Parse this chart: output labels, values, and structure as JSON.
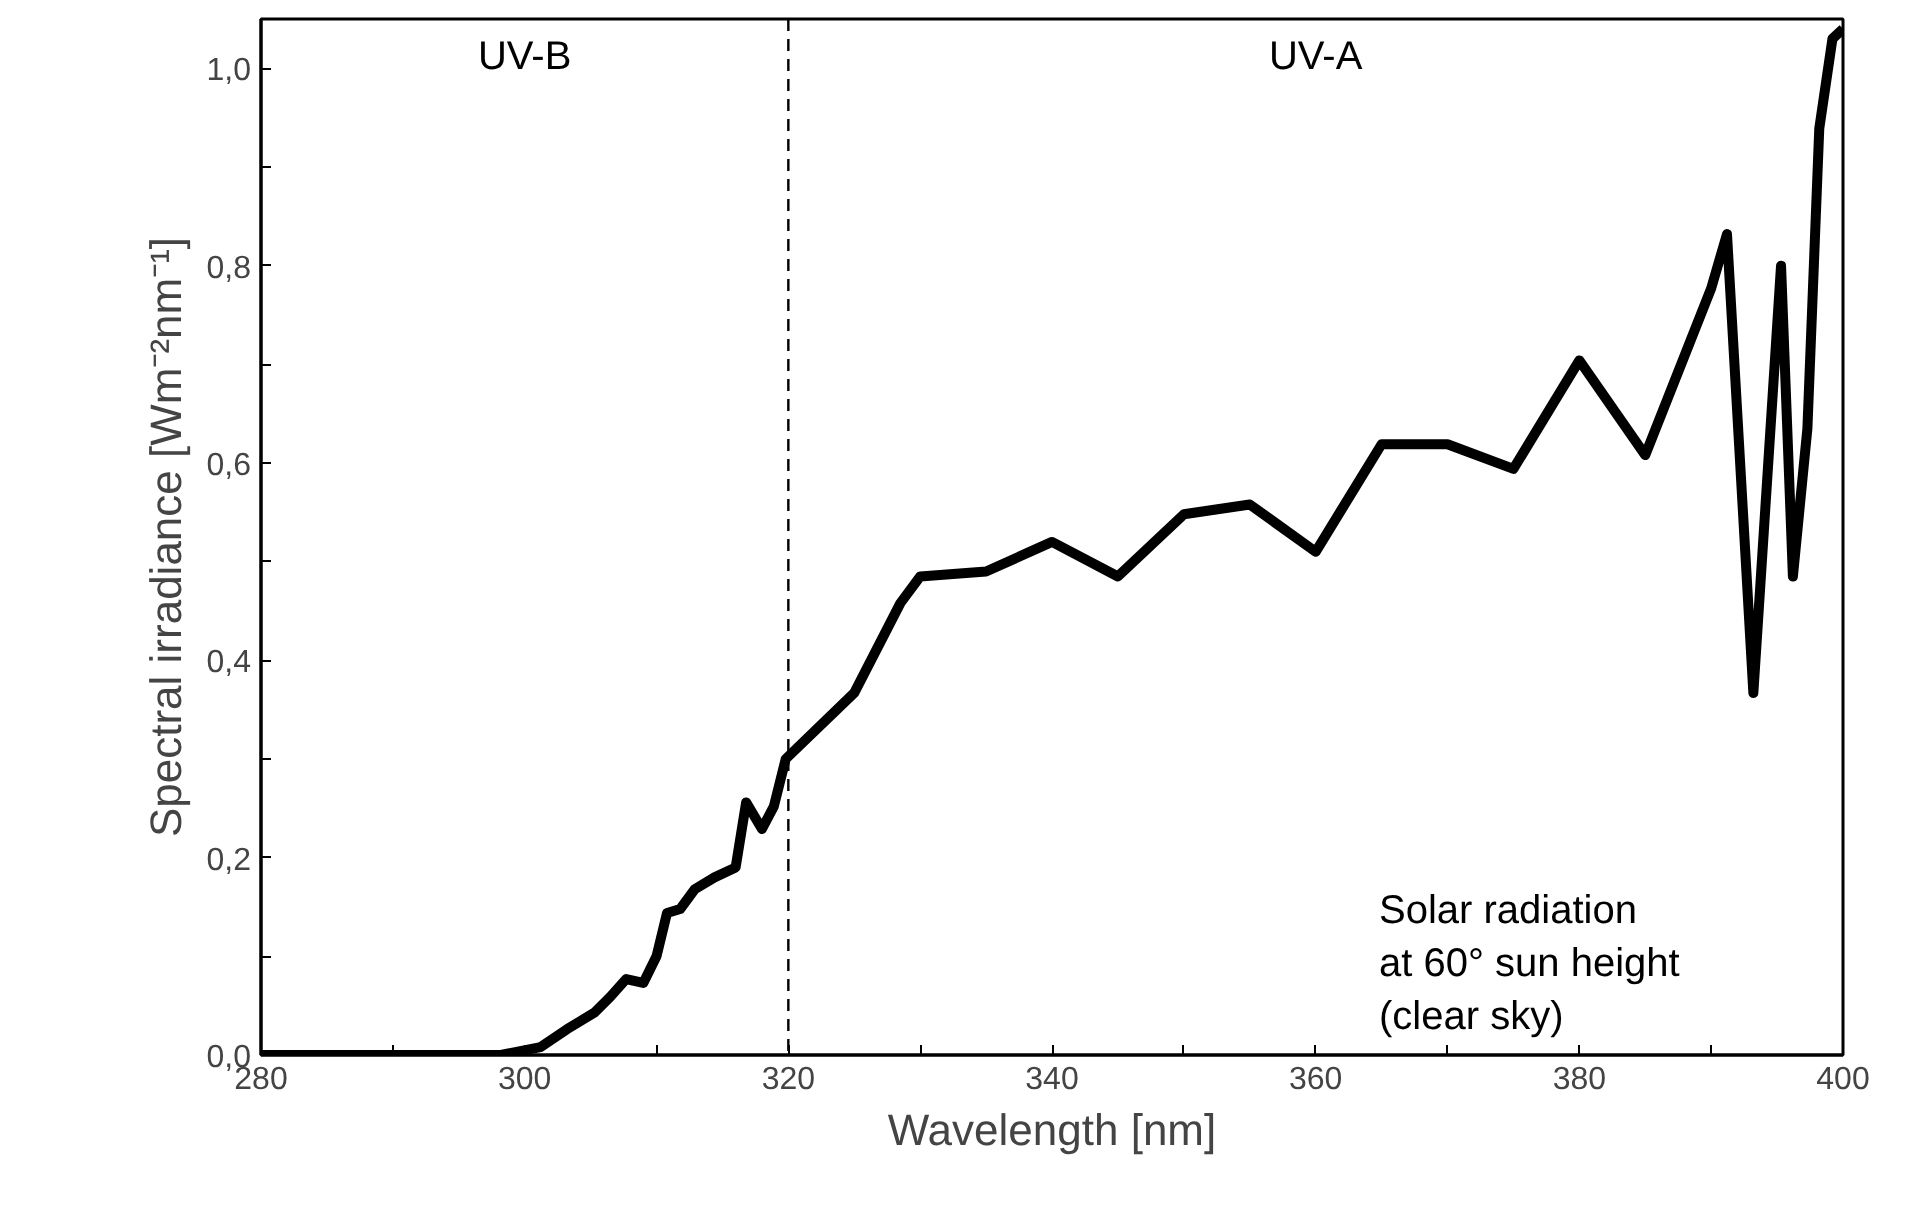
{
  "chart_data": {
    "type": "line",
    "xlabel": "Wavelength [nm]",
    "ylabel": "Spectral irradiance [Wm⁻²nm⁻¹]",
    "xlim": [
      280,
      400
    ],
    "ylim": [
      0,
      1.05
    ],
    "xticks": [
      280,
      {
        "value": 290,
        "label": null
      },
      300,
      {
        "value": 310,
        "label": null
      },
      320,
      {
        "value": 330,
        "label": null
      },
      340,
      {
        "value": 350,
        "label": null
      },
      360,
      {
        "value": 370,
        "label": null
      },
      380,
      {
        "value": 390,
        "label": null
      },
      400
    ],
    "yticks": [
      {
        "value": 0,
        "label": "0,0"
      },
      {
        "value": 0.1,
        "label": null
      },
      {
        "value": 0.2,
        "label": "0,2"
      },
      {
        "value": 0.3,
        "label": null
      },
      {
        "value": 0.4,
        "label": "0,4"
      },
      {
        "value": 0.5,
        "label": null
      },
      {
        "value": 0.6,
        "label": "0,6"
      },
      {
        "value": 0.7,
        "label": null
      },
      {
        "value": 0.8,
        "label": "0,8"
      },
      {
        "value": 0.9,
        "label": null
      },
      {
        "value": 1.0,
        "label": "1,0"
      }
    ],
    "grid": false,
    "marker": "none",
    "line_style": "solid",
    "series": [
      {
        "color": "#000000",
        "x": [
          280,
          285,
          290,
          295,
          298.2,
          301.2,
          303.2,
          305.3,
          306.5,
          307.7,
          309,
          310,
          310.8,
          311.8,
          312.9,
          314.4,
          316,
          316.8,
          318,
          318.9,
          319.8,
          325,
          328.5,
          330,
          335,
          340,
          345,
          350,
          355,
          360,
          365,
          370,
          375,
          380,
          385,
          390,
          391.2,
          393.2,
          395.3,
          396.2,
          397.3,
          398.2,
          399.2,
          400
        ],
        "values": [
          0,
          0,
          0,
          0,
          0,
          0.008,
          0.026,
          0.043,
          0.059,
          0.077,
          0.073,
          0.1,
          0.144,
          0.148,
          0.168,
          0.18,
          0.19,
          0.256,
          0.229,
          0.252,
          0.3,
          0.367,
          0.458,
          0.485,
          0.49,
          0.52,
          0.485,
          0.548,
          0.558,
          0.51,
          0.619,
          0.619,
          0.594,
          0.704,
          0.608,
          0.777,
          0.832,
          0.367,
          0.8,
          0.485,
          0.635,
          0.939,
          1.03,
          1.04
        ]
      }
    ],
    "ref_lines": [
      {
        "axis": "x",
        "value": 320,
        "color": "#000000",
        "line_style": "dashed"
      }
    ],
    "annotations": [
      "UV-B",
      "UV-A",
      "Solar radiation\nat 60° sun height\n(clear sky)"
    ]
  }
}
